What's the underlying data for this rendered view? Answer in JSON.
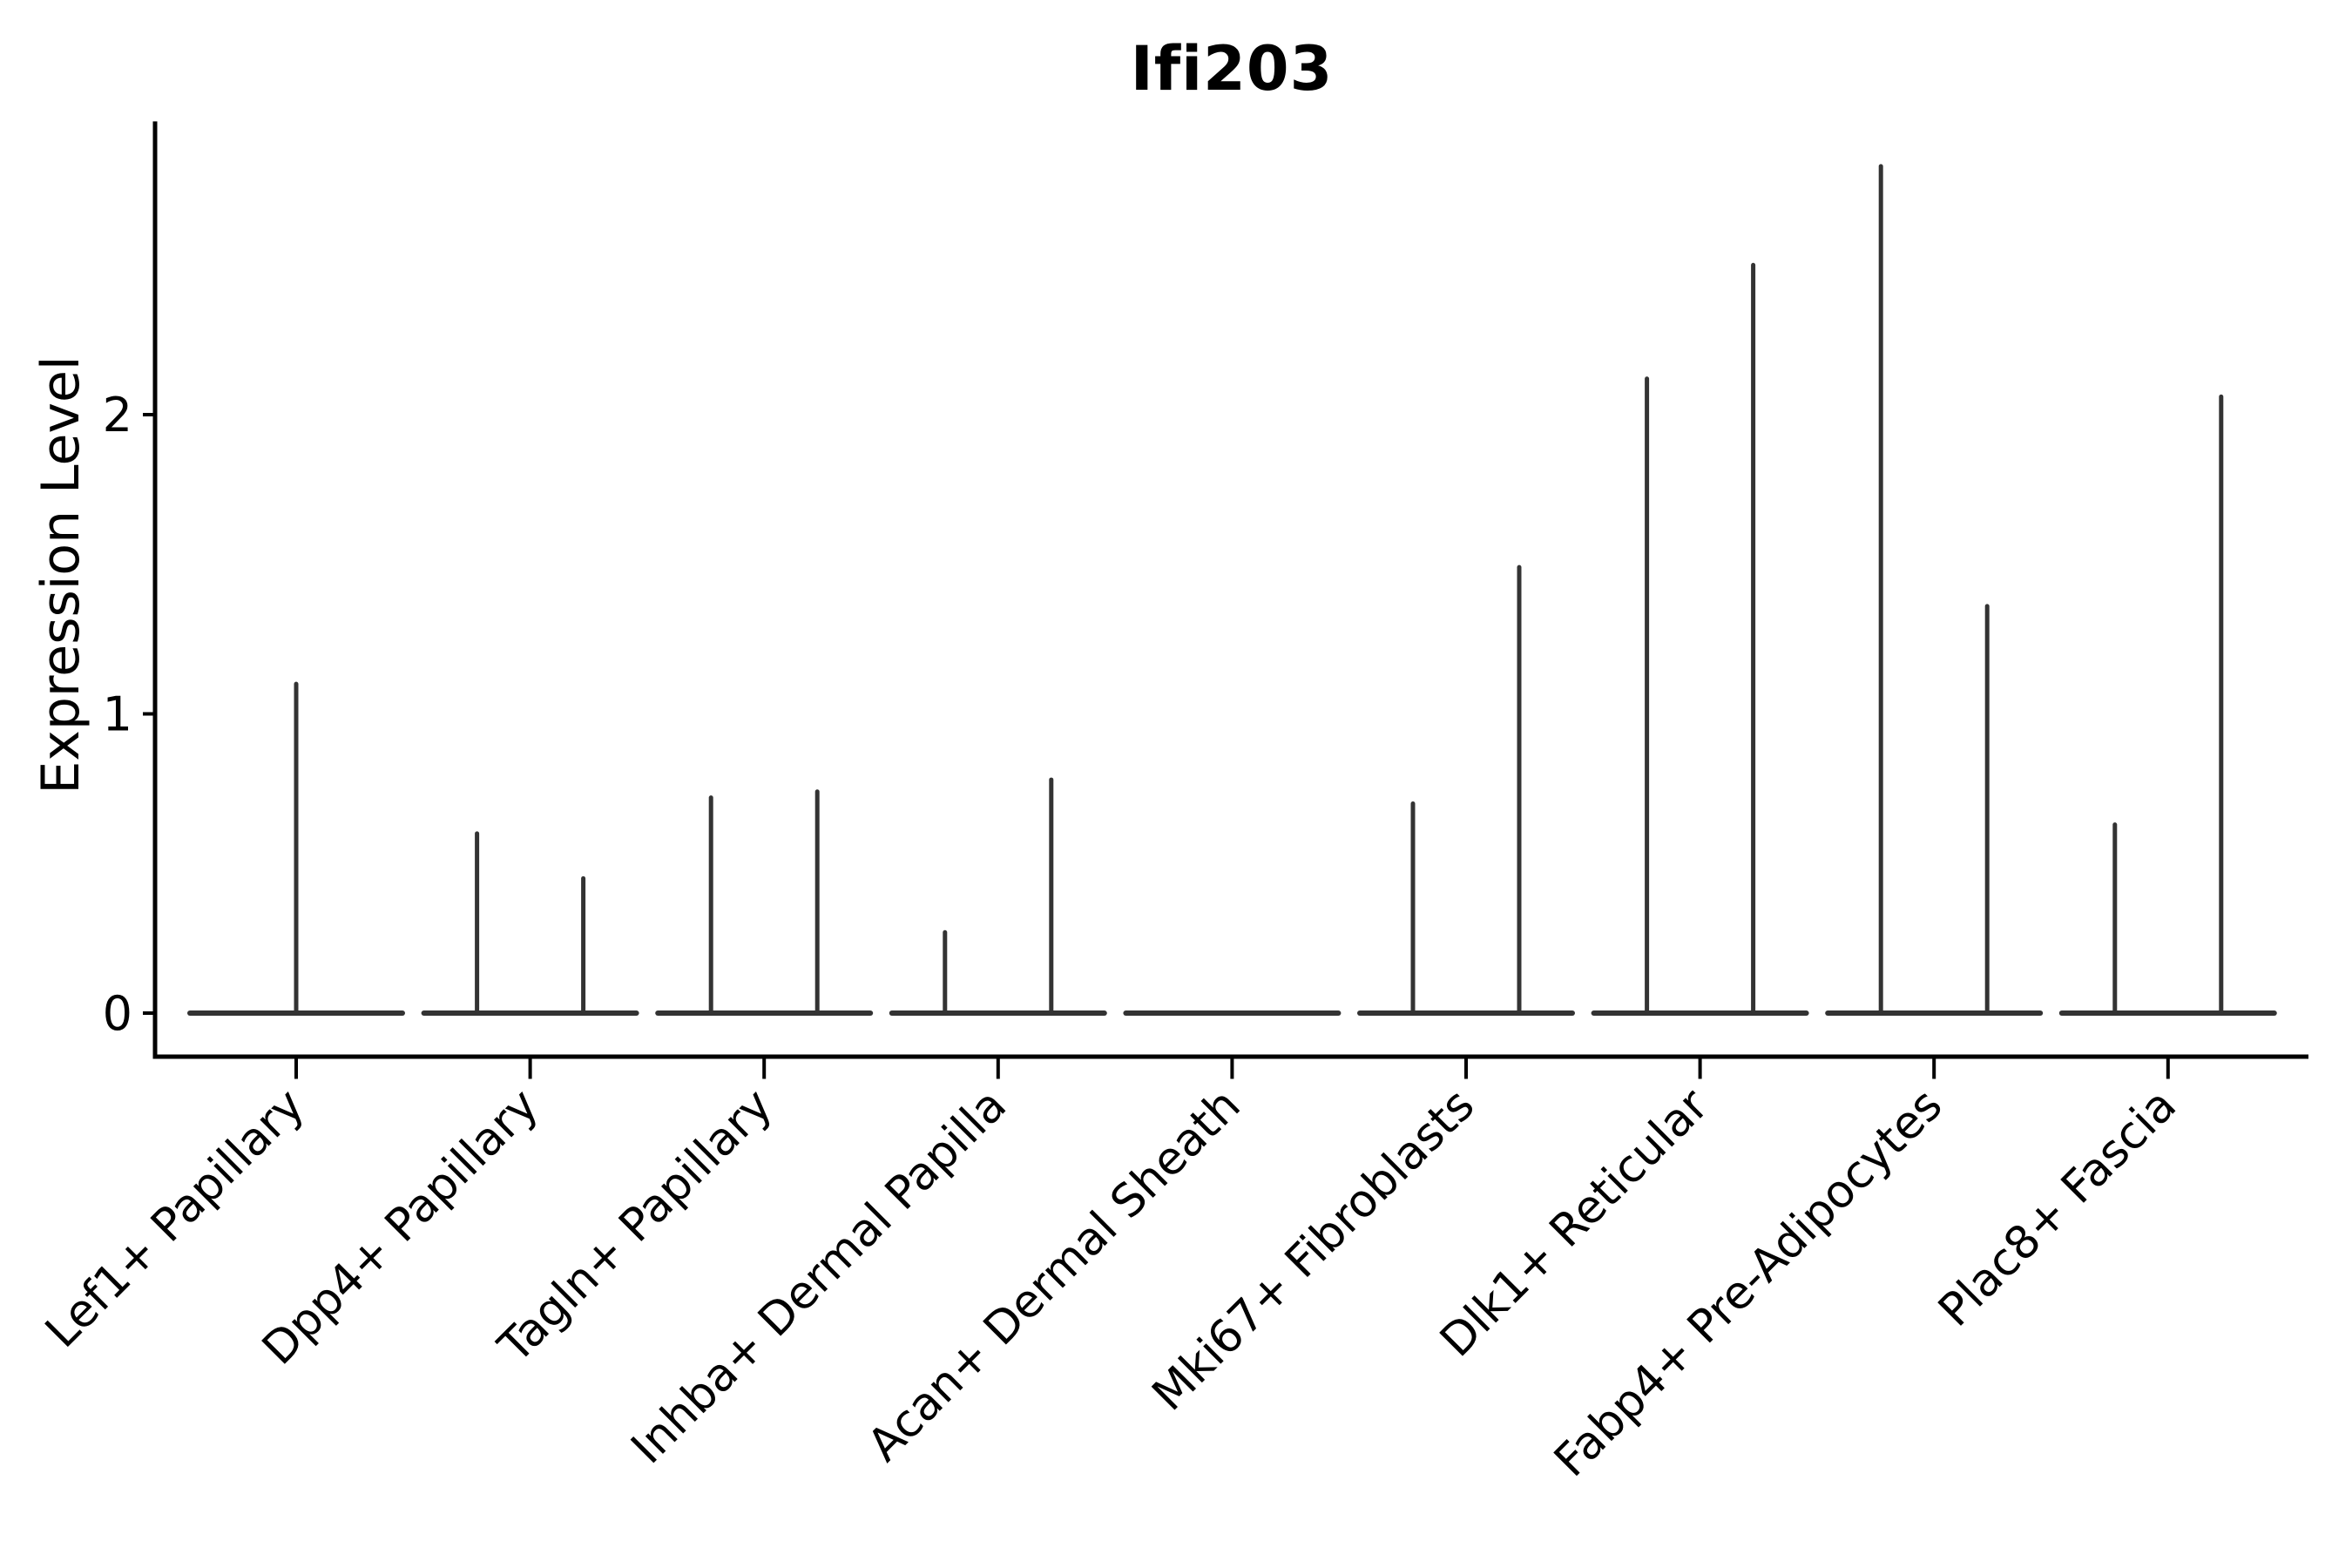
{
  "chart_data": {
    "type": "violin",
    "title": "Ifi203",
    "ylabel": "Expression Level",
    "xlabel": "",
    "yticks": [
      0,
      1,
      2
    ],
    "ylim": [
      0,
      2.98
    ],
    "grid": false,
    "legend": "none",
    "categories": [
      "Lef1+ Papillary",
      "Dpp4+ Papillary",
      "Tagln+ Papillary",
      "Inhba+ Dermal Papilla",
      "Acan+ Dermal Sheath",
      "Mki67+ Fibroblasts",
      "Dlk1+ Reticular",
      "Fabp4+ Pre-Adipocytes",
      "Plac8+ Fascia"
    ],
    "series": [
      {
        "name": "Lef1+ Papillary",
        "violins": [
          {
            "position": "center",
            "max_expression": 1.1
          }
        ]
      },
      {
        "name": "Dpp4+ Papillary",
        "violins": [
          {
            "position": "left",
            "max_expression": 0.6
          },
          {
            "position": "right",
            "max_expression": 0.45
          }
        ]
      },
      {
        "name": "Tagln+ Papillary",
        "violins": [
          {
            "position": "left",
            "max_expression": 0.72
          },
          {
            "position": "right",
            "max_expression": 0.74
          }
        ]
      },
      {
        "name": "Inhba+ Dermal Papilla",
        "violins": [
          {
            "position": "left",
            "max_expression": 0.27
          },
          {
            "position": "right",
            "max_expression": 0.78
          }
        ]
      },
      {
        "name": "Acan+ Dermal Sheath",
        "violins": []
      },
      {
        "name": "Mki67+ Fibroblasts",
        "violins": [
          {
            "position": "left",
            "max_expression": 0.7
          },
          {
            "position": "right",
            "max_expression": 1.49
          }
        ]
      },
      {
        "name": "Dlk1+ Reticular",
        "violins": [
          {
            "position": "left",
            "max_expression": 2.12
          },
          {
            "position": "right",
            "max_expression": 2.5
          }
        ]
      },
      {
        "name": "Fabp4+ Pre-Adipocytes",
        "violins": [
          {
            "position": "left",
            "max_expression": 2.83
          },
          {
            "position": "right",
            "max_expression": 1.36
          }
        ]
      },
      {
        "name": "Plac8+ Fascia",
        "violins": [
          {
            "position": "left",
            "max_expression": 0.63
          },
          {
            "position": "right",
            "max_expression": 2.06
          }
        ]
      }
    ],
    "style": {
      "violin_color": "#333333",
      "axis_color": "#000000",
      "text_color": "#000000",
      "background_color": "#ffffff",
      "x_tick_label_rotation_deg": 45
    }
  }
}
